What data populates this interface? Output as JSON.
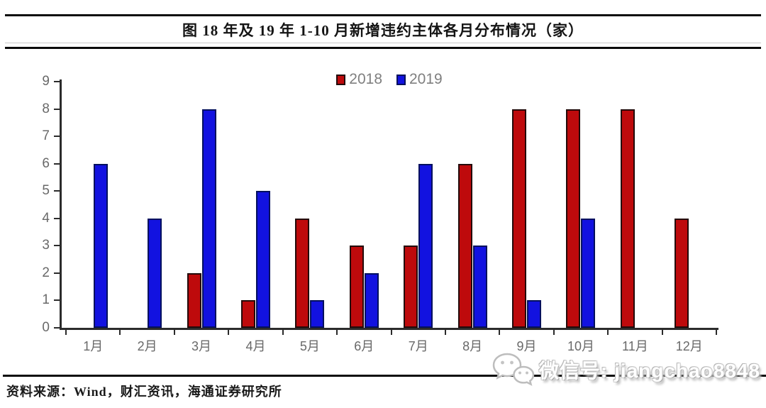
{
  "header": {
    "title": "图 18 年及 19 年 1-10 月新增违约主体各月分布情况（家）"
  },
  "chart_data": {
    "type": "bar",
    "title": "18年及19年1-10月新增违约主体各月分布情况（家）",
    "categories": [
      "1月",
      "2月",
      "3月",
      "4月",
      "5月",
      "6月",
      "7月",
      "8月",
      "9月",
      "10月",
      "11月",
      "12月"
    ],
    "series": [
      {
        "name": "2018",
        "color": "#BE0A0C",
        "border_color": "#230A0A",
        "values": [
          0,
          0,
          2,
          1,
          4,
          3,
          3,
          6,
          8,
          8,
          8,
          4
        ]
      },
      {
        "name": "2019",
        "color": "#1212E0",
        "border_color": "#04105E",
        "values": [
          6,
          4,
          8,
          5,
          1,
          2,
          6,
          3,
          1,
          4,
          0,
          0
        ]
      }
    ],
    "xlabel": "",
    "ylabel": "",
    "ylim": [
      0,
      9
    ],
    "yticks": [
      0,
      1,
      2,
      3,
      4,
      5,
      6,
      7,
      8,
      9
    ],
    "grid": false,
    "legend_position": "top-center",
    "axis_color": "#2B2B2B",
    "tick_label_color": "#696969",
    "legend_text_color": "#7F7F7F"
  },
  "footer": {
    "source_note": "资料来源：Wind，财汇资讯，海通证券研究所"
  },
  "watermark": {
    "icon": "wechat-icon",
    "text": "微信号: jiangchao8848"
  }
}
